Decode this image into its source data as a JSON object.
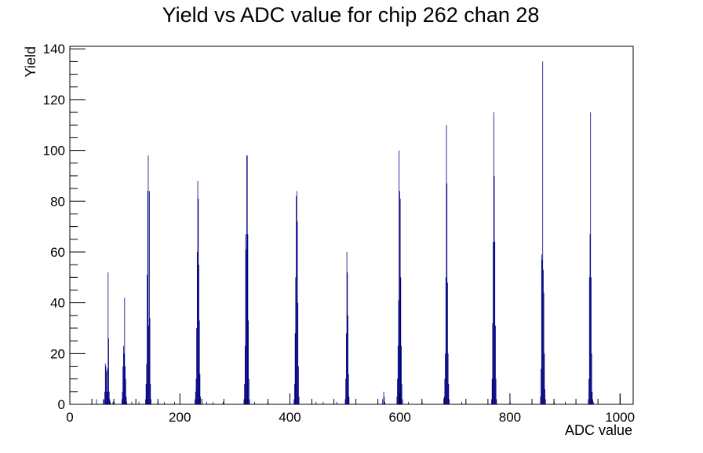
{
  "chart_data": {
    "type": "bar",
    "title": "Yield vs ADC value for chip 262 chan 28",
    "xlabel": "ADC value",
    "ylabel": "Yield",
    "xlim": [
      0,
      1024
    ],
    "ylim": [
      0,
      141
    ],
    "x_ticks": [
      0,
      200,
      400,
      600,
      800,
      1000
    ],
    "y_ticks": [
      0,
      20,
      40,
      60,
      80,
      100,
      120,
      140
    ],
    "grid": false,
    "line_color": "#000080",
    "bin_width": 1,
    "points": [
      [
        48,
        2
      ],
      [
        60,
        2
      ],
      [
        62,
        2
      ],
      [
        63,
        5
      ],
      [
        64,
        16
      ],
      [
        65,
        15
      ],
      [
        66,
        13
      ],
      [
        67,
        5
      ],
      [
        68,
        14
      ],
      [
        69,
        52
      ],
      [
        70,
        26
      ],
      [
        71,
        5
      ],
      [
        72,
        2
      ],
      [
        73,
        1
      ],
      [
        78,
        1
      ],
      [
        80,
        1
      ],
      [
        94,
        2
      ],
      [
        95,
        5
      ],
      [
        96,
        15
      ],
      [
        97,
        23
      ],
      [
        98,
        20
      ],
      [
        99,
        42
      ],
      [
        100,
        15
      ],
      [
        101,
        10
      ],
      [
        102,
        3
      ],
      [
        103,
        1
      ],
      [
        112,
        1
      ],
      [
        125,
        1
      ],
      [
        137,
        2
      ],
      [
        138,
        8
      ],
      [
        139,
        16
      ],
      [
        140,
        51
      ],
      [
        141,
        84
      ],
      [
        142,
        98
      ],
      [
        143,
        31
      ],
      [
        144,
        84
      ],
      [
        145,
        34
      ],
      [
        146,
        8
      ],
      [
        147,
        2
      ],
      [
        160,
        1
      ],
      [
        171,
        1
      ],
      [
        190,
        1
      ],
      [
        227,
        2
      ],
      [
        228,
        5
      ],
      [
        229,
        10
      ],
      [
        230,
        30
      ],
      [
        231,
        60
      ],
      [
        232,
        88
      ],
      [
        233,
        81
      ],
      [
        234,
        55
      ],
      [
        235,
        33
      ],
      [
        236,
        12
      ],
      [
        237,
        3
      ],
      [
        248,
        1
      ],
      [
        260,
        1
      ],
      [
        278,
        1
      ],
      [
        316,
        2
      ],
      [
        317,
        8
      ],
      [
        318,
        23
      ],
      [
        319,
        67
      ],
      [
        320,
        61
      ],
      [
        321,
        98
      ],
      [
        322,
        98
      ],
      [
        323,
        67
      ],
      [
        324,
        33
      ],
      [
        325,
        10
      ],
      [
        326,
        2
      ],
      [
        335,
        1
      ],
      [
        360,
        1
      ],
      [
        407,
        2
      ],
      [
        408,
        8
      ],
      [
        409,
        28
      ],
      [
        410,
        50
      ],
      [
        411,
        82
      ],
      [
        412,
        84
      ],
      [
        413,
        72
      ],
      [
        414,
        40
      ],
      [
        415,
        15
      ],
      [
        416,
        3
      ],
      [
        447,
        1
      ],
      [
        460,
        1
      ],
      [
        485,
        1
      ],
      [
        500,
        2
      ],
      [
        501,
        10
      ],
      [
        502,
        28
      ],
      [
        503,
        60
      ],
      [
        504,
        52
      ],
      [
        505,
        35
      ],
      [
        506,
        12
      ],
      [
        507,
        3
      ],
      [
        568,
        2
      ],
      [
        570,
        5
      ],
      [
        571,
        3
      ],
      [
        572,
        1
      ],
      [
        594,
        3
      ],
      [
        595,
        10
      ],
      [
        596,
        23
      ],
      [
        597,
        41
      ],
      [
        598,
        100
      ],
      [
        599,
        84
      ],
      [
        600,
        81
      ],
      [
        601,
        50
      ],
      [
        602,
        23
      ],
      [
        603,
        8
      ],
      [
        604,
        2
      ],
      [
        615,
        1
      ],
      [
        640,
        1
      ],
      [
        680,
        3
      ],
      [
        681,
        10
      ],
      [
        682,
        20
      ],
      [
        683,
        50
      ],
      [
        684,
        110
      ],
      [
        685,
        87
      ],
      [
        686,
        48
      ],
      [
        687,
        20
      ],
      [
        688,
        8
      ],
      [
        689,
        2
      ],
      [
        712,
        1
      ],
      [
        766,
        2
      ],
      [
        767,
        10
      ],
      [
        768,
        32
      ],
      [
        769,
        64
      ],
      [
        770,
        115
      ],
      [
        771,
        90
      ],
      [
        772,
        64
      ],
      [
        773,
        31
      ],
      [
        774,
        10
      ],
      [
        775,
        2
      ],
      [
        800,
        1
      ],
      [
        855,
        3
      ],
      [
        856,
        14
      ],
      [
        857,
        59
      ],
      [
        858,
        57
      ],
      [
        859,
        135
      ],
      [
        860,
        53
      ],
      [
        861,
        44
      ],
      [
        862,
        20
      ],
      [
        863,
        6
      ],
      [
        864,
        2
      ],
      [
        880,
        1
      ],
      [
        900,
        1
      ],
      [
        942,
        2
      ],
      [
        943,
        10
      ],
      [
        944,
        50
      ],
      [
        945,
        67
      ],
      [
        946,
        115
      ],
      [
        947,
        50
      ],
      [
        948,
        20
      ],
      [
        949,
        5
      ],
      [
        950,
        2
      ],
      [
        951,
        1
      ],
      [
        1000,
        4
      ]
    ]
  }
}
